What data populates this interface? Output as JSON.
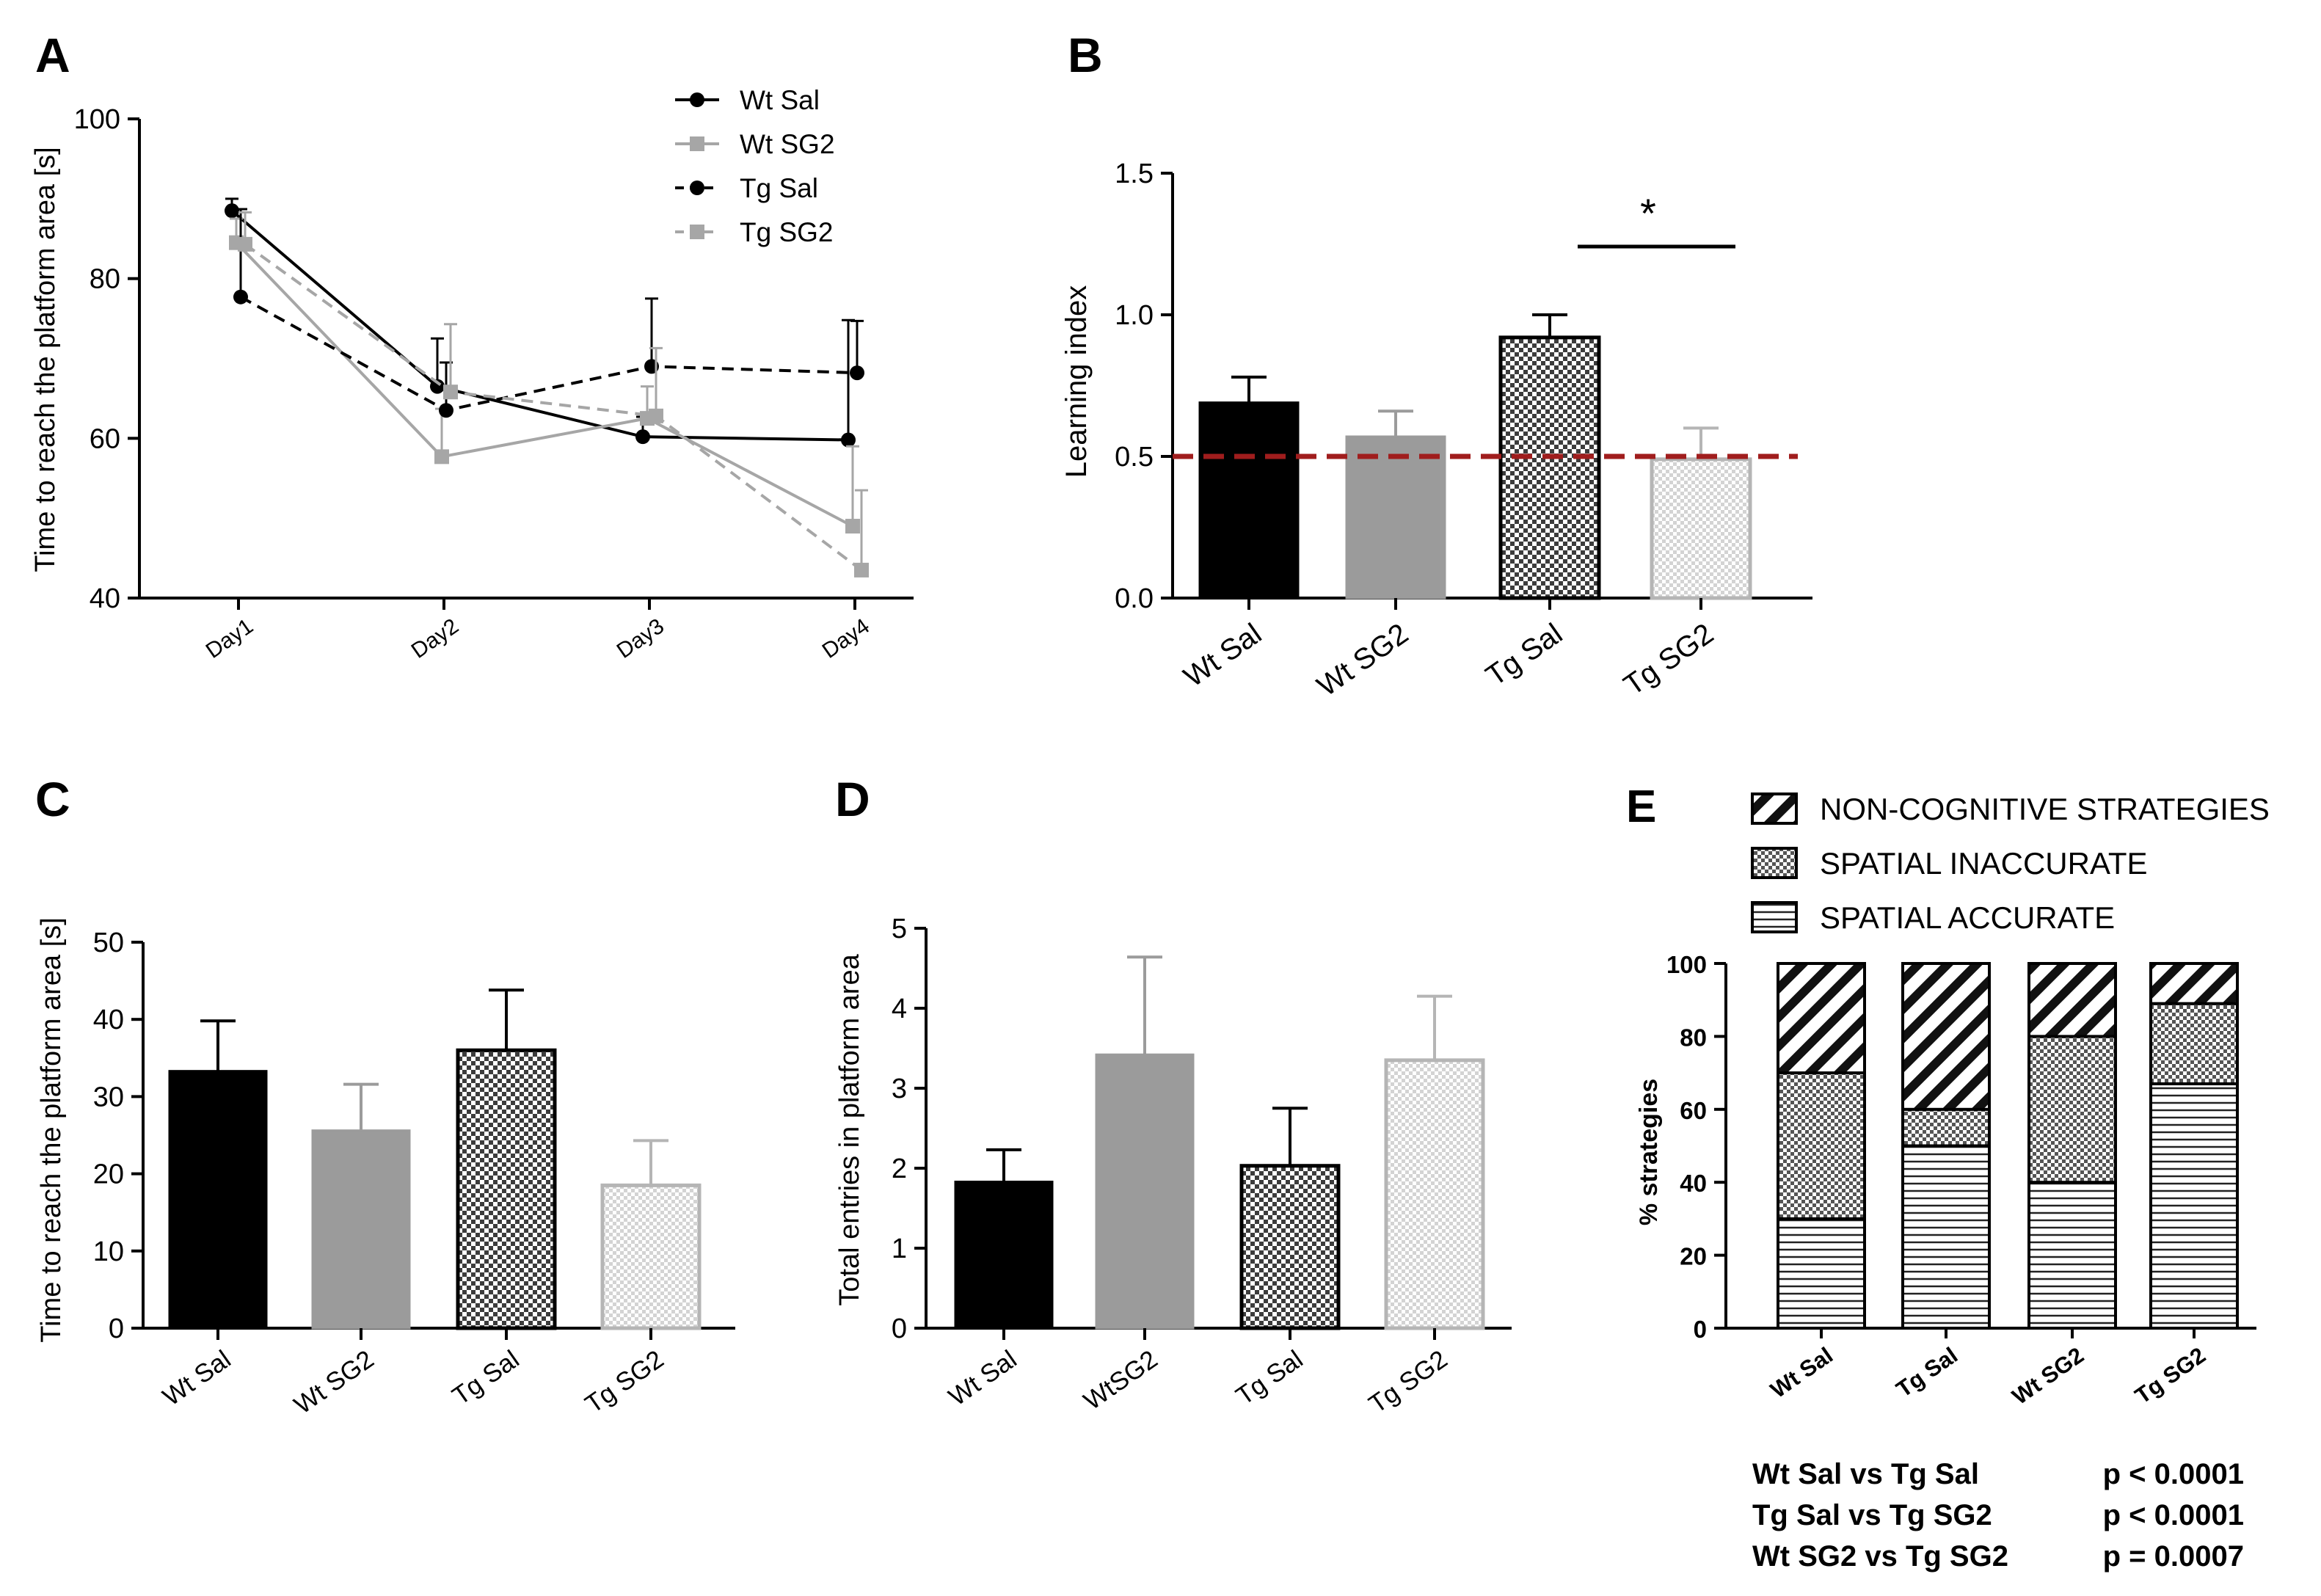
{
  "chart_data": [
    {
      "panel": "A",
      "type": "line",
      "ylabel": "Time to reach the platform area [s]",
      "xlabel": "",
      "categories": [
        "Day1",
        "Day2",
        "Day3",
        "Day4"
      ],
      "ylim": [
        40,
        100
      ],
      "yticks": [
        40,
        60,
        80,
        100
      ],
      "series": [
        {
          "name": "Wt Sal",
          "values": [
            88.5,
            66.5,
            60.2,
            59.8
          ],
          "err": [
            1.5,
            6,
            2.5,
            15
          ],
          "color": "#000000",
          "dash": false,
          "marker": "circle"
        },
        {
          "name": "Wt SG2",
          "values": [
            84.5,
            57.7,
            62.5,
            49
          ],
          "err": [
            3,
            6,
            4,
            10
          ],
          "color": "#a6a6a6",
          "dash": false,
          "marker": "square"
        },
        {
          "name": "Tg Sal",
          "values": [
            77.7,
            63.5,
            69,
            68.2
          ],
          "err": [
            11,
            6,
            8.5,
            6.5
          ],
          "color": "#000000",
          "dash": true,
          "marker": "circle"
        },
        {
          "name": "Tg SG2",
          "values": [
            84.3,
            65.8,
            62.8,
            43.5
          ],
          "err": [
            4,
            8.5,
            8.5,
            10
          ],
          "color": "#a6a6a6",
          "dash": true,
          "marker": "square"
        }
      ]
    },
    {
      "panel": "B",
      "type": "bar",
      "ylabel": "Learning index",
      "xlabel": "",
      "categories": [
        "Wt Sal",
        "Wt SG2",
        "Tg Sal",
        "Tg SG2"
      ],
      "values": [
        0.69,
        0.57,
        0.92,
        0.49
      ],
      "err": [
        0.09,
        0.09,
        0.08,
        0.11
      ],
      "ylim": [
        0,
        1.5
      ],
      "yticks": [
        "0.0",
        "0.5",
        "1.0",
        "1.5"
      ],
      "reference_line": 0.5,
      "reference_color": "#a01d1d",
      "significance": {
        "pair": [
          "Tg Sal",
          "Tg SG2"
        ],
        "label": "*"
      }
    },
    {
      "panel": "C",
      "type": "bar",
      "ylabel": "Time to reach the platform area [s]",
      "xlabel": "",
      "categories": [
        "Wt Sal",
        "Wt SG2",
        "Tg Sal",
        "Tg SG2"
      ],
      "values": [
        33.3,
        25.6,
        36,
        18.5
      ],
      "err": [
        6.5,
        6,
        7.8,
        5.8
      ],
      "ylim": [
        0,
        50
      ],
      "yticks": [
        "0",
        "10",
        "20",
        "30",
        "40",
        "50"
      ]
    },
    {
      "panel": "D",
      "type": "bar",
      "ylabel": "Total entries in platform area",
      "xlabel": "",
      "categories": [
        "Wt Sal",
        "WtSG2",
        "Tg Sal",
        "Tg SG2"
      ],
      "values": [
        1.83,
        3.42,
        2.03,
        3.35
      ],
      "err": [
        0.4,
        1.22,
        0.72,
        0.8
      ],
      "ylim": [
        0,
        5
      ],
      "yticks": [
        "0",
        "1",
        "2",
        "3",
        "4",
        "5"
      ]
    },
    {
      "panel": "E",
      "type": "bar",
      "stacked": true,
      "ylabel": "% strategies",
      "xlabel": "",
      "categories": [
        "Wt Sal",
        "Tg Sal",
        "Wt SG2",
        "Tg SG2"
      ],
      "ylim": [
        0,
        100
      ],
      "yticks": [
        "0",
        "20",
        "40",
        "60",
        "80",
        "100"
      ],
      "series": [
        {
          "name": "SPATIAL ACCURATE",
          "values": [
            30,
            50,
            40,
            67
          ],
          "pattern": "horizontal"
        },
        {
          "name": "SPATIAL INACCURATE",
          "values": [
            40,
            10,
            40,
            22
          ],
          "pattern": "dots"
        },
        {
          "name": "NON-COGNITIVE STRATEGIES",
          "values": [
            30,
            40,
            20,
            11
          ],
          "pattern": "diagonal"
        }
      ],
      "stats": [
        {
          "label": "Wt Sal vs Tg Sal",
          "p": "p < 0.0001"
        },
        {
          "label": "Tg Sal vs Tg SG2",
          "p": "p < 0.0001"
        },
        {
          "label": "Wt SG2 vs Tg SG2",
          "p": "p = 0.0007"
        }
      ]
    }
  ]
}
